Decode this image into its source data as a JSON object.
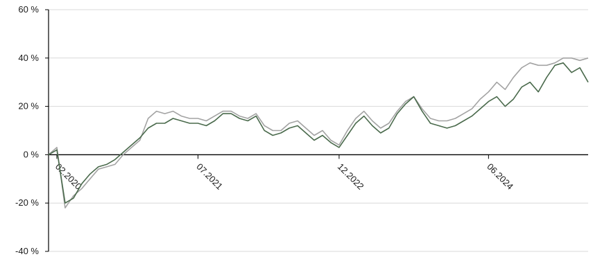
{
  "chart_data": {
    "type": "line",
    "title": "",
    "xlabel": "",
    "ylabel": "",
    "ylim": [
      -40,
      60
    ],
    "yticks": [
      -40,
      -20,
      0,
      20,
      40,
      60
    ],
    "ytick_labels": [
      "-40 %",
      "-20 %",
      "0 %",
      "20 %",
      "40 %",
      "60 %"
    ],
    "xlim": [
      "2020-01",
      "2025-06"
    ],
    "xticks": [
      "2020-02",
      "2021-07",
      "2022-12",
      "2024-06"
    ],
    "xtick_labels": [
      "02.2020",
      "07.2021",
      "12.2022",
      "06.2024"
    ],
    "grid": "horizontal",
    "legend": "none",
    "colors": {
      "series_dark": "#4a6a4c",
      "series_light": "#a3a3a3",
      "grid": "#d9d9d9",
      "axis": "#000000"
    },
    "x": [
      "2020-01",
      "2020-02",
      "2020-03",
      "2020-04",
      "2020-05",
      "2020-06",
      "2020-07",
      "2020-08",
      "2020-09",
      "2020-10",
      "2020-11",
      "2020-12",
      "2021-01",
      "2021-02",
      "2021-03",
      "2021-04",
      "2021-05",
      "2021-06",
      "2021-07",
      "2021-08",
      "2021-09",
      "2021-10",
      "2021-11",
      "2021-12",
      "2022-01",
      "2022-02",
      "2022-03",
      "2022-04",
      "2022-05",
      "2022-06",
      "2022-07",
      "2022-08",
      "2022-09",
      "2022-10",
      "2022-11",
      "2022-12",
      "2023-01",
      "2023-02",
      "2023-03",
      "2023-04",
      "2023-05",
      "2023-06",
      "2023-07",
      "2023-08",
      "2023-09",
      "2023-10",
      "2023-11",
      "2023-12",
      "2024-01",
      "2024-02",
      "2024-03",
      "2024-04",
      "2024-05",
      "2024-06",
      "2024-07",
      "2024-08",
      "2024-09",
      "2024-10",
      "2024-11",
      "2024-12",
      "2025-01",
      "2025-02",
      "2025-03",
      "2025-04",
      "2025-05",
      "2025-06"
    ],
    "series": [
      {
        "values": [
          0,
          2,
          -20,
          -18,
          -12,
          -8,
          -5,
          -4,
          -2,
          1,
          4,
          7,
          11,
          13,
          13,
          15,
          14,
          13,
          13,
          12,
          14,
          17,
          17,
          15,
          14,
          16,
          10,
          8,
          9,
          11,
          12,
          9,
          6,
          8,
          5,
          3,
          8,
          13,
          16,
          12,
          9,
          11,
          17,
          21,
          24,
          18,
          13,
          12,
          11,
          12,
          14,
          16,
          19,
          22,
          24,
          20,
          23,
          28,
          30,
          26,
          32,
          37,
          38,
          34,
          36,
          30
        ]
      },
      {
        "values": [
          0,
          3,
          -22,
          -17,
          -14,
          -10,
          -6,
          -5,
          -4,
          0,
          3,
          6,
          15,
          18,
          17,
          18,
          16,
          15,
          15,
          14,
          16,
          18,
          18,
          16,
          15,
          17,
          12,
          10,
          10,
          13,
          14,
          11,
          8,
          10,
          6,
          4,
          10,
          15,
          18,
          14,
          11,
          13,
          18,
          22,
          24,
          19,
          15,
          14,
          14,
          15,
          17,
          19,
          23,
          26,
          30,
          27,
          32,
          36,
          38,
          37,
          37,
          38,
          40,
          40,
          39,
          40
        ]
      }
    ]
  }
}
